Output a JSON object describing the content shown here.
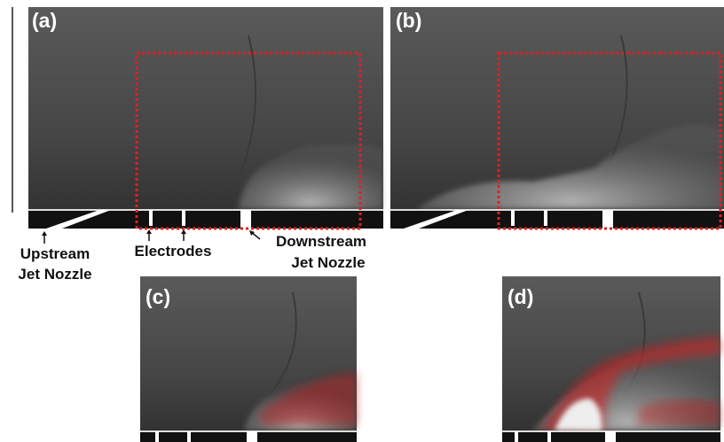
{
  "panels": [
    {
      "label": "(a)"
    },
    {
      "label": "(b)"
    },
    {
      "label": "(c)"
    },
    {
      "label": "(d)"
    }
  ],
  "annotations": {
    "upstream": [
      "Upstream",
      "Jet Nozzle"
    ],
    "electrodes": "Electrodes",
    "downstream": [
      "Downstream",
      "Jet Nozzle"
    ]
  }
}
